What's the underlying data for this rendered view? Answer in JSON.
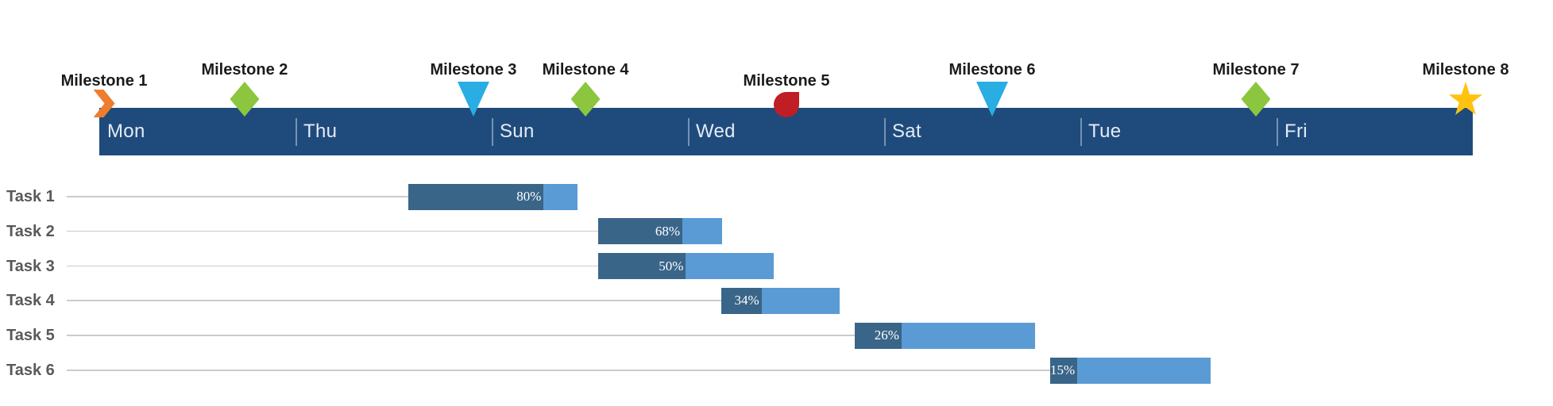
{
  "chart_data": {
    "type": "gantt",
    "title": "",
    "timeline": {
      "day_labels": [
        "Mon",
        "Thu",
        "Sun",
        "Wed",
        "Sat",
        "Tue",
        "Fri"
      ],
      "bar_color": "#1F4B7C",
      "divider_color": "rgba(222,234,248,0.45)",
      "day_text_color": "#E4EBF5"
    },
    "milestones": [
      {
        "label": "Milestone 1",
        "pos_pct": 0.35,
        "marker": "chevron",
        "color": "#EE7D2F",
        "label_row": "low"
      },
      {
        "label": "Milestone 2",
        "pos_pct": 10.58,
        "marker": "diamond",
        "color": "#8CC63E",
        "label_row": "high"
      },
      {
        "label": "Milestone 3",
        "pos_pct": 27.24,
        "marker": "triangle-down",
        "color": "#29ADE3",
        "label_row": "high"
      },
      {
        "label": "Milestone 4",
        "pos_pct": 35.4,
        "marker": "diamond",
        "color": "#8CC63E",
        "label_row": "high"
      },
      {
        "label": "Milestone 5",
        "pos_pct": 50.03,
        "marker": "circle",
        "color": "#BE1E24",
        "label_row": "low"
      },
      {
        "label": "Milestone 6",
        "pos_pct": 65.01,
        "marker": "triangle-down",
        "color": "#29ADE3",
        "label_row": "high"
      },
      {
        "label": "Milestone 7",
        "pos_pct": 84.21,
        "marker": "diamond",
        "color": "#8CC63E",
        "label_row": "high"
      },
      {
        "label": "Milestone 8",
        "pos_pct": 99.48,
        "marker": "star",
        "color": "#FFC20E",
        "label_row": "high"
      }
    ],
    "tasks": [
      {
        "label": "Task 1",
        "start_pct": 22.5,
        "end_pct": 34.82,
        "progress_pct": 80,
        "progress_label": "80%"
      },
      {
        "label": "Task 2",
        "start_pct": 36.32,
        "end_pct": 45.34,
        "progress_pct": 68,
        "progress_label": "68%"
      },
      {
        "label": "Task 3",
        "start_pct": 36.32,
        "end_pct": 49.1,
        "progress_pct": 50,
        "progress_label": "50%"
      },
      {
        "label": "Task 4",
        "start_pct": 45.29,
        "end_pct": 53.9,
        "progress_pct": 34,
        "progress_label": "34%"
      },
      {
        "label": "Task 5",
        "start_pct": 55.0,
        "end_pct": 68.13,
        "progress_pct": 26,
        "progress_label": "26%"
      },
      {
        "label": "Task 6",
        "start_pct": 69.23,
        "end_pct": 80.91,
        "progress_pct": 15,
        "progress_label": "15%"
      }
    ],
    "colors": {
      "progress_fill": "#396589",
      "remaining_fill": "#5B9BD5",
      "task_label": "#595959",
      "milestone_label": "#1b1b1b",
      "leader_line": "#cbcbcb",
      "progress_text": "#ffffff"
    },
    "legend": "none",
    "grid": "off"
  }
}
